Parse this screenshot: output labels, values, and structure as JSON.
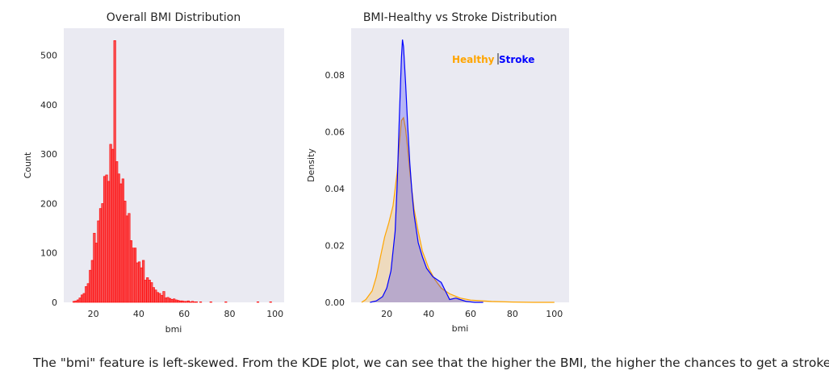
{
  "chart_data": [
    {
      "type": "histogram",
      "title": "Overall BMI Distribution",
      "xlabel": "bmi",
      "ylabel": "Count",
      "xlim": [
        7,
        104
      ],
      "ylim": [
        0,
        555
      ],
      "xticks": [
        20,
        40,
        60,
        80,
        100
      ],
      "yticks": [
        0,
        100,
        200,
        300,
        400,
        500
      ],
      "grid": false,
      "color": "#ff0000",
      "bin_width": 0.9,
      "bins": [
        [
          11.0,
          2
        ],
        [
          11.9,
          3
        ],
        [
          12.8,
          5
        ],
        [
          13.7,
          9
        ],
        [
          14.6,
          15
        ],
        [
          15.5,
          18
        ],
        [
          16.4,
          32
        ],
        [
          17.3,
          38
        ],
        [
          18.2,
          65
        ],
        [
          19.1,
          85
        ],
        [
          20.0,
          140
        ],
        [
          20.9,
          120
        ],
        [
          21.8,
          165
        ],
        [
          22.7,
          190
        ],
        [
          23.6,
          200
        ],
        [
          24.5,
          255
        ],
        [
          25.4,
          258
        ],
        [
          26.3,
          245
        ],
        [
          27.2,
          320
        ],
        [
          28.1,
          310
        ],
        [
          29.0,
          530
        ],
        [
          29.9,
          285
        ],
        [
          30.8,
          260
        ],
        [
          31.7,
          240
        ],
        [
          32.6,
          250
        ],
        [
          33.5,
          205
        ],
        [
          34.4,
          175
        ],
        [
          35.3,
          180
        ],
        [
          36.2,
          125
        ],
        [
          37.1,
          110
        ],
        [
          38.0,
          110
        ],
        [
          38.9,
          80
        ],
        [
          39.8,
          82
        ],
        [
          40.7,
          70
        ],
        [
          41.6,
          85
        ],
        [
          42.5,
          45
        ],
        [
          43.4,
          50
        ],
        [
          44.3,
          45
        ],
        [
          45.2,
          40
        ],
        [
          46.1,
          30
        ],
        [
          47.0,
          25
        ],
        [
          47.9,
          20
        ],
        [
          48.8,
          18
        ],
        [
          49.7,
          14
        ],
        [
          50.6,
          22
        ],
        [
          51.5,
          9
        ],
        [
          52.4,
          10
        ],
        [
          53.3,
          8
        ],
        [
          54.2,
          6
        ],
        [
          55.1,
          7
        ],
        [
          56.0,
          5
        ],
        [
          56.9,
          4
        ],
        [
          57.8,
          3
        ],
        [
          58.7,
          3
        ],
        [
          59.6,
          2
        ],
        [
          60.5,
          2
        ],
        [
          61.4,
          3
        ],
        [
          62.3,
          1
        ],
        [
          63.2,
          2
        ],
        [
          64.1,
          1
        ],
        [
          65.0,
          1
        ],
        [
          66.8,
          1
        ],
        [
          71.3,
          1
        ],
        [
          77.9,
          1
        ],
        [
          92.0,
          1
        ],
        [
          97.6,
          1
        ]
      ]
    },
    {
      "type": "kde",
      "title": "BMI-Healthy vs Stroke Distribution",
      "xlabel": "bmi",
      "ylabel": "Density",
      "xlim": [
        3,
        107
      ],
      "ylim": [
        0,
        0.0965
      ],
      "xticks": [
        20,
        40,
        60,
        80,
        100
      ],
      "yticks": [
        0.0,
        0.02,
        0.04,
        0.06,
        0.08
      ],
      "grid": false,
      "legend_position": "top-right",
      "series": [
        {
          "name": "Healthy",
          "color": "#ffa500",
          "x": [
            8,
            10,
            13,
            15,
            17,
            19,
            21,
            23,
            25,
            26,
            27,
            28,
            29,
            30,
            31,
            33,
            35,
            37,
            40,
            43,
            46,
            50,
            55,
            60,
            70,
            80,
            90,
            100
          ],
          "y": [
            0.0,
            0.001,
            0.004,
            0.009,
            0.016,
            0.023,
            0.028,
            0.034,
            0.046,
            0.056,
            0.064,
            0.065,
            0.061,
            0.054,
            0.046,
            0.033,
            0.025,
            0.018,
            0.012,
            0.008,
            0.005,
            0.003,
            0.0015,
            0.0008,
            0.0003,
            0.0001,
            0.0,
            0.0
          ]
        },
        {
          "name": "Stroke",
          "color": "#0000ff",
          "x": [
            12,
            15,
            18,
            20,
            22,
            24,
            25,
            26,
            27,
            27.5,
            28,
            29,
            30,
            31,
            32,
            33,
            35,
            37,
            39,
            42,
            44,
            46,
            48,
            50,
            53,
            55,
            58,
            62,
            66
          ],
          "y": [
            0.0,
            0.0005,
            0.002,
            0.005,
            0.011,
            0.025,
            0.042,
            0.065,
            0.086,
            0.0925,
            0.09,
            0.077,
            0.062,
            0.049,
            0.039,
            0.031,
            0.021,
            0.016,
            0.012,
            0.009,
            0.008,
            0.007,
            0.004,
            0.001,
            0.0015,
            0.001,
            0.0003,
            0.0,
            0.0
          ]
        }
      ],
      "annotations": [
        "Healthy",
        "Stroke"
      ]
    }
  ],
  "caption": "The \"bmi\" feature is left-skewed. From the KDE plot, we can see that the higher the BMI, the higher the chances to get a stroke."
}
